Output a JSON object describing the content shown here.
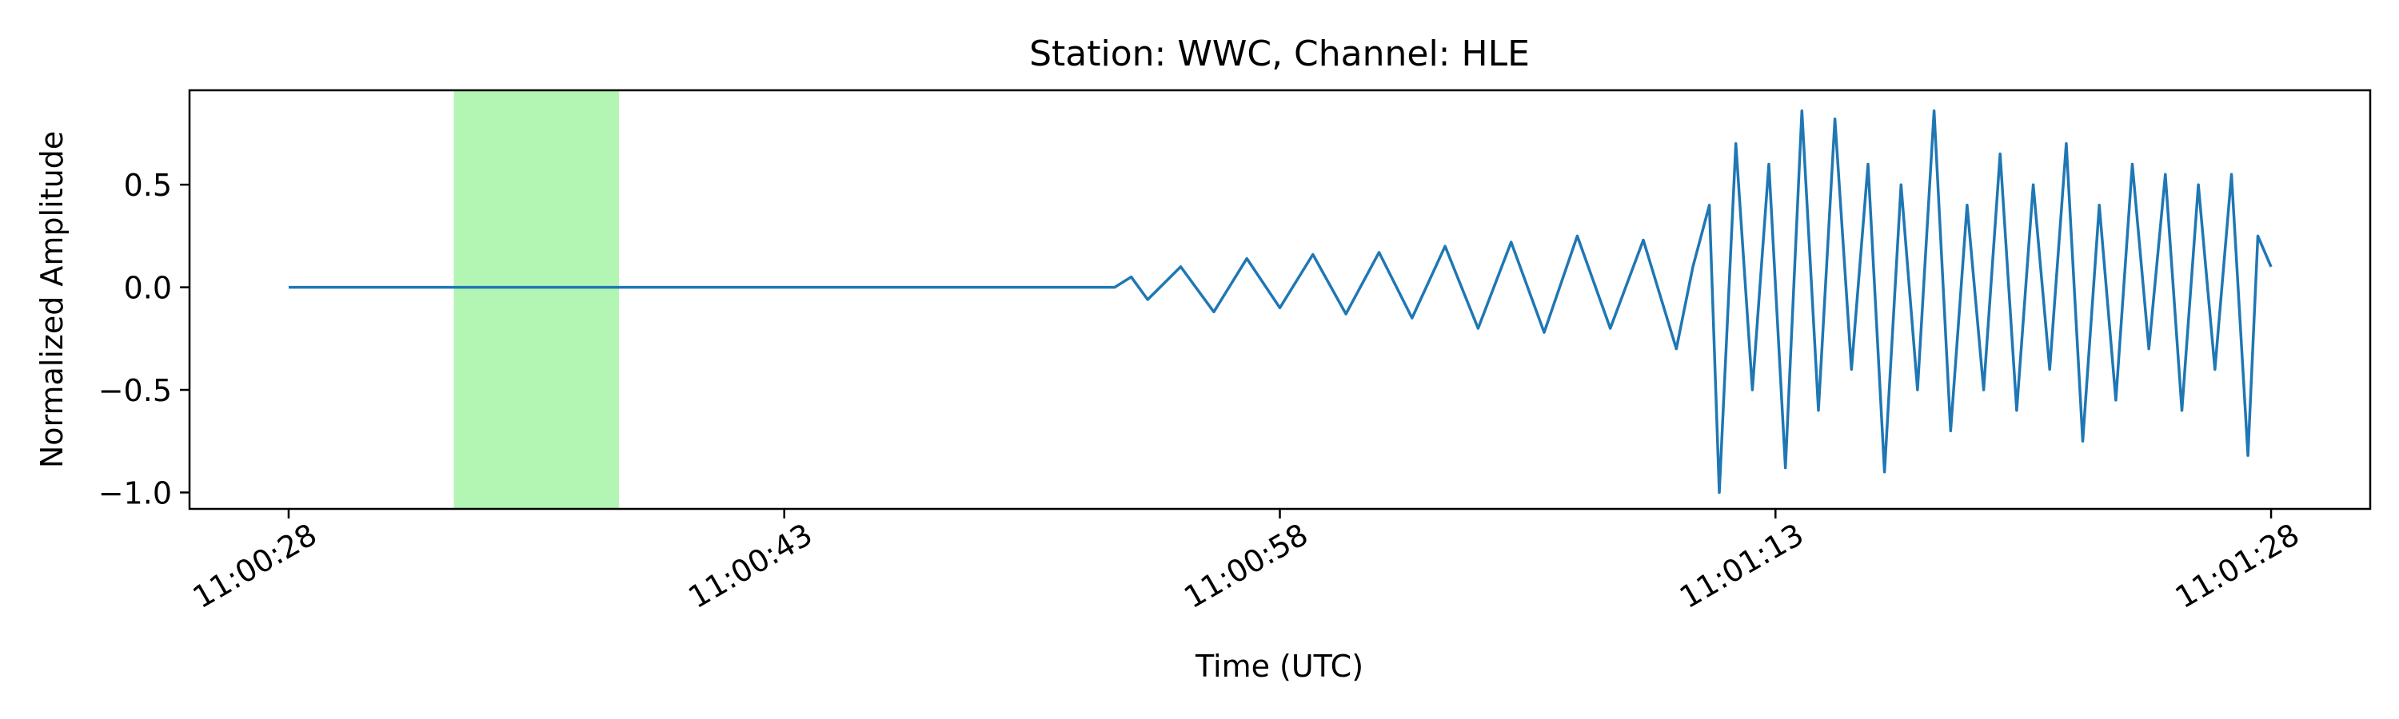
{
  "chart_data": {
    "type": "line",
    "title": "Station: WWC, Channel: HLE",
    "xlabel": "Time (UTC)",
    "ylabel": "Normalized Amplitude",
    "x_unit": "seconds",
    "xlim": [
      "11:00:25",
      "11:01:31"
    ],
    "ylim": [
      -1.08,
      0.96
    ],
    "x_ticks": [
      "11:00:28",
      "11:00:43",
      "11:00:58",
      "11:01:13",
      "11:01:28"
    ],
    "y_ticks": [
      0.5,
      0.0,
      -0.5,
      -1.0
    ],
    "y_tick_labels": [
      "0.5",
      "0.0",
      "−0.5",
      "−1.0"
    ],
    "grid": false,
    "highlight": {
      "start": "11:00:33",
      "end": "11:00:38",
      "color": "#b3f5b3"
    },
    "series": [
      {
        "color": "#1f77b4",
        "x": [
          "11:00:28",
          "11:00:40",
          "11:00:53",
          "11:00:53.5",
          "11:00:54",
          "11:00:55",
          "11:00:56",
          "11:00:57",
          "11:00:58",
          "11:00:59",
          "11:01:00",
          "11:01:01",
          "11:01:02",
          "11:01:03",
          "11:01:04",
          "11:01:05",
          "11:01:06",
          "11:01:07",
          "11:01:08",
          "11:01:09",
          "11:01:10",
          "11:01:10.5",
          "11:01:11",
          "11:01:11.3",
          "11:01:11.8",
          "11:01:12.3",
          "11:01:12.8",
          "11:01:13.3",
          "11:01:13.8",
          "11:01:14.3",
          "11:01:14.8",
          "11:01:15.3",
          "11:01:15.8",
          "11:01:16.3",
          "11:01:16.8",
          "11:01:17.3",
          "11:01:17.8",
          "11:01:18.3",
          "11:01:18.8",
          "11:01:19.3",
          "11:01:19.8",
          "11:01:20.3",
          "11:01:20.8",
          "11:01:21.3",
          "11:01:21.8",
          "11:01:22.3",
          "11:01:22.8",
          "11:01:23.3",
          "11:01:23.8",
          "11:01:24.3",
          "11:01:24.8",
          "11:01:25.3",
          "11:01:25.8",
          "11:01:26.3",
          "11:01:26.8",
          "11:01:27.3",
          "11:01:27.6",
          "11:01:28"
        ],
        "y": [
          0.0,
          0.0,
          0.0,
          0.05,
          -0.06,
          0.1,
          -0.12,
          0.14,
          -0.1,
          0.16,
          -0.13,
          0.17,
          -0.15,
          0.2,
          -0.2,
          0.22,
          -0.22,
          0.25,
          -0.2,
          0.23,
          -0.3,
          0.1,
          0.4,
          -1.0,
          0.7,
          -0.5,
          0.6,
          -0.88,
          0.86,
          -0.6,
          0.82,
          -0.4,
          0.6,
          -0.9,
          0.5,
          -0.5,
          0.86,
          -0.7,
          0.4,
          -0.5,
          0.65,
          -0.6,
          0.5,
          -0.4,
          0.7,
          -0.75,
          0.4,
          -0.55,
          0.6,
          -0.3,
          0.55,
          -0.6,
          0.5,
          -0.4,
          0.55,
          -0.82,
          0.25,
          0.1
        ]
      }
    ]
  }
}
